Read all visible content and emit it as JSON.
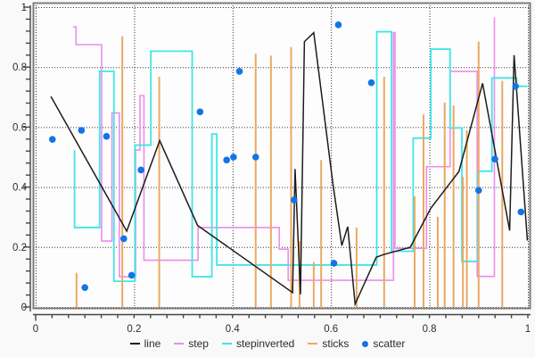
{
  "chart": {
    "background": "#f9f9f9",
    "plot_background": "#fdfdfd",
    "frame_color": "#7d7d7d",
    "grid_color": "#333333",
    "axis_color": "#444444",
    "x_axis": {
      "tick_labels": [
        "0",
        "0.2",
        "0.4",
        "0.6",
        "0.8",
        "1"
      ],
      "tick_values": [
        0,
        0.2,
        0.4,
        0.6,
        0.8,
        1
      ],
      "minor_step": 0.033333,
      "range": [
        0,
        1
      ]
    },
    "y_axis": {
      "tick_labels": [
        "0",
        "0.2",
        "0.4",
        "0.6",
        "0.8",
        "1"
      ],
      "tick_values": [
        0,
        0.2,
        0.4,
        0.6,
        0.8,
        1
      ],
      "minor_step": 0.04,
      "range": [
        0,
        1
      ]
    }
  },
  "chart_data": {
    "type": "line",
    "xlim": [
      0,
      1
    ],
    "ylim": [
      0,
      1
    ],
    "grid": "dotted",
    "legend_position": "bottom-center",
    "series": [
      {
        "name": "step",
        "type": "step",
        "color": "#ee8ceb",
        "width": 1.6,
        "x": [
          0.076,
          0.082,
          0.134,
          0.155,
          0.17,
          0.203,
          0.212,
          0.22,
          0.33,
          0.495,
          0.513,
          0.727,
          0.73,
          0.794,
          0.842,
          0.897,
          0.932
        ],
        "y": [
          0.934,
          0.875,
          0.22,
          0.647,
          0.101,
          0.524,
          0.705,
          0.156,
          0.265,
          0.193,
          0.089,
          0.915,
          0.196,
          0.468,
          0.786,
          0.102,
          0.966
        ]
      },
      {
        "name": "stepinverted",
        "type": "stepinverted",
        "color": "#41e6e6",
        "width": 1.8,
        "x": [
          0.079,
          0.13,
          0.159,
          0.202,
          0.234,
          0.318,
          0.358,
          0.368,
          0.693,
          0.723,
          0.767,
          0.803,
          0.842,
          0.866,
          0.898,
          0.927,
          0.977,
          0.999
        ],
        "y": [
          0.523,
          0.265,
          0.786,
          0.086,
          0.54,
          0.853,
          0.101,
          0.577,
          0.14,
          0.918,
          0.186,
          0.563,
          0.86,
          0.597,
          0.152,
          0.453,
          0.764,
          0.736
        ]
      },
      {
        "name": "sticks",
        "type": "sticks",
        "color": "#eba963",
        "width": 2,
        "x": [
          0.083,
          0.176,
          0.251,
          0.447,
          0.478,
          0.519,
          0.536,
          0.565,
          0.58,
          0.652,
          0.708,
          0.77,
          0.788,
          0.817,
          0.831,
          0.849,
          0.868,
          0.876,
          0.9,
          0.948
        ],
        "y": [
          0.114,
          0.903,
          0.768,
          0.845,
          0.838,
          0.867,
          0.22,
          0.15,
          0.49,
          0.265,
          0.768,
          0.369,
          0.642,
          0.301,
          0.682,
          0.672,
          0.434,
          0.59,
          0.885,
          0.754
        ]
      },
      {
        "name": "line",
        "type": "line",
        "color": "#1c1c1c",
        "width": 1.5,
        "x": [
          0.031,
          0.185,
          0.252,
          0.329,
          0.522,
          0.527,
          0.538,
          0.546,
          0.565,
          0.604,
          0.622,
          0.634,
          0.649,
          0.692,
          0.707,
          0.761,
          0.803,
          0.86,
          0.908,
          0.963,
          0.972,
          0.999
        ],
        "y": [
          0.702,
          0.253,
          0.555,
          0.272,
          0.048,
          0.46,
          0.042,
          0.885,
          0.915,
          0.41,
          0.205,
          0.268,
          0.01,
          0.166,
          0.175,
          0.199,
          0.33,
          0.452,
          0.746,
          0.255,
          0.84,
          0.222
        ]
      },
      {
        "name": "scatter",
        "type": "scatter",
        "color": "#1374e6",
        "radius": 3.8,
        "x": [
          0.034,
          0.093,
          0.1,
          0.144,
          0.179,
          0.195,
          0.214,
          0.334,
          0.388,
          0.402,
          0.414,
          0.447,
          0.525,
          0.606,
          0.615,
          0.682,
          0.9,
          0.933,
          0.975,
          0.986
        ],
        "y": [
          0.559,
          0.589,
          0.065,
          0.569,
          0.228,
          0.106,
          0.457,
          0.651,
          0.49,
          0.5,
          0.786,
          0.5,
          0.357,
          0.146,
          0.941,
          0.748,
          0.389,
          0.493,
          0.736,
          0.317
        ]
      }
    ]
  },
  "legend": {
    "items": [
      {
        "label": "line",
        "color": "#1c1c1c",
        "sample": "line"
      },
      {
        "label": "step",
        "color": "#ee8ceb",
        "sample": "line"
      },
      {
        "label": "stepinverted",
        "color": "#41e6e6",
        "sample": "line"
      },
      {
        "label": "sticks",
        "color": "#eba963",
        "sample": "line"
      },
      {
        "label": "scatter",
        "color": "#1374e6",
        "sample": "dot"
      }
    ]
  }
}
